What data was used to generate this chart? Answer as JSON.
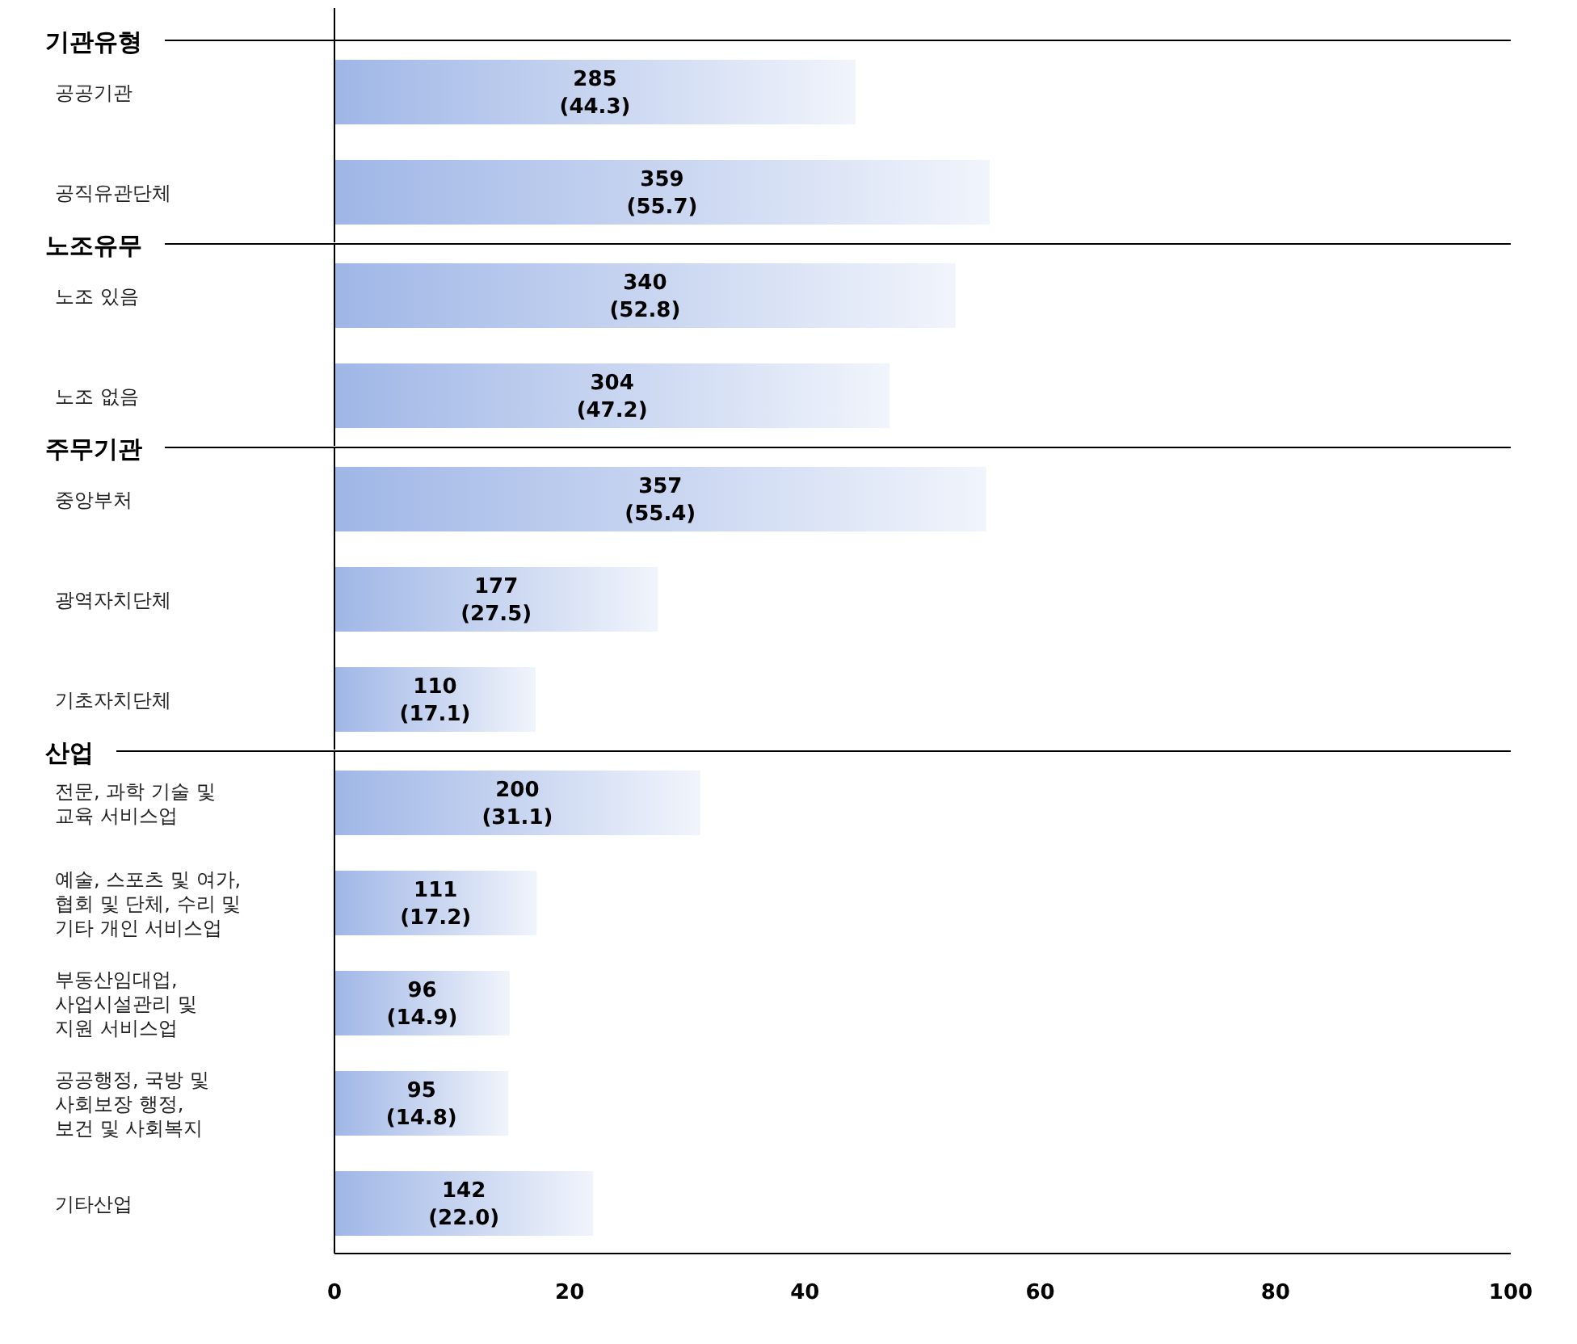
{
  "chart_data": [
    {
      "type": "bar",
      "orientation": "horizontal",
      "title": "기관유형",
      "color": "#9fb6e6",
      "categories": [
        "공공기관",
        "공직유관단체"
      ],
      "values": [
        44.3,
        55.7
      ],
      "value_labels": [
        "285\n(44.3)",
        "359\n(55.7)"
      ],
      "xlim": [
        0,
        100
      ],
      "tick_labels": "y",
      "grid": false
    },
    {
      "type": "bar",
      "orientation": "horizontal",
      "title": "노조유무",
      "color": "#9fb6e6",
      "categories": [
        "노조 있음",
        "노조 없음"
      ],
      "values": [
        52.8,
        47.2
      ],
      "value_labels": [
        "340\n(52.8)",
        "304\n(47.2)"
      ],
      "xlim": [
        0,
        100
      ],
      "tick_labels": "y",
      "grid": false
    },
    {
      "type": "bar",
      "orientation": "horizontal",
      "title": "주무기관",
      "color": "#9fb6e6",
      "categories": [
        "중앙부처",
        "광역자치단체",
        "기초자치단체"
      ],
      "values": [
        55.4,
        27.5,
        17.1
      ],
      "value_labels": [
        "357\n(55.4)",
        "177\n(27.5)",
        "110\n(17.1)"
      ],
      "xlim": [
        0,
        100
      ],
      "tick_labels": "y",
      "grid": false
    },
    {
      "type": "bar",
      "orientation": "horizontal",
      "title": "산업",
      "color": "#9fb6e6",
      "categories": [
        "전문, 과학 기술 및\n교육 서비스업",
        "예술, 스포츠 및 여가,\n협회 및 단체, 수리 및\n기타 개인 서비스업",
        "부동산임대업,\n사업시설관리 및\n지원 서비스업",
        "공공행정, 국방 및\n사회보장 행정,\n보건 및 사회복지",
        "기타산업"
      ],
      "values": [
        31.1,
        17.2,
        14.9,
        14.8,
        22.0
      ],
      "value_labels": [
        "200\n(31.1)",
        "111\n(17.2)",
        "96\n(14.9)",
        "95\n(14.8)",
        "142\n(22.0)"
      ],
      "xlim": [
        0,
        100
      ],
      "xticks": [
        0,
        20,
        40,
        60,
        80,
        100
      ],
      "grid": false
    }
  ]
}
